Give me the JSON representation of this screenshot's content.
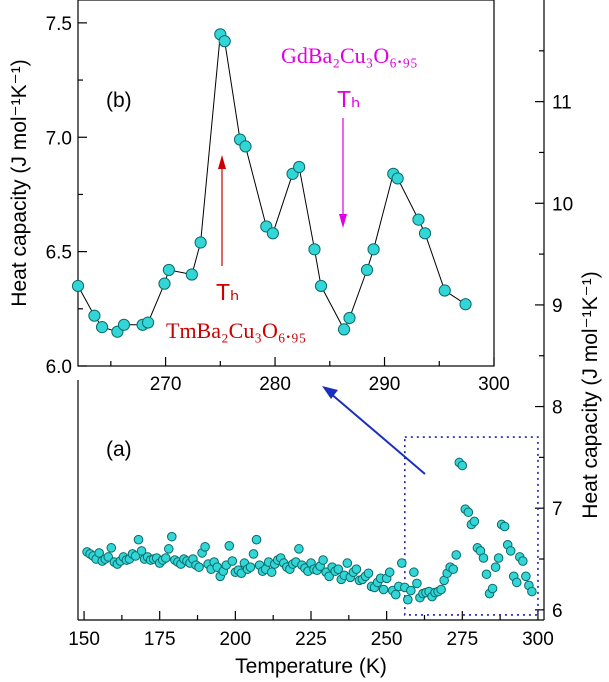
{
  "chart_data": [
    {
      "panel": "(a)",
      "type": "scatter",
      "xlabel": "Temperature (K)",
      "ylabel": "Heat capacity (J mol⁻¹K⁻¹)",
      "xlim": [
        148,
        302
      ],
      "ylim": [
        5.9,
        12.0
      ],
      "xticks": [
        "150",
        "175",
        "200",
        "225",
        "250",
        "275",
        "300"
      ],
      "yticks": [
        "6",
        "7",
        "8",
        "9",
        "10",
        "11"
      ],
      "box": {
        "x": [
          256,
          300
        ],
        "y": [
          5.95,
          7.7
        ]
      },
      "colors": {
        "marker": "#33d6d6",
        "marker_edge": "#0a6a6a",
        "box": "#2222aa",
        "arrow": "#1a2fbf"
      },
      "series": [
        {
          "x": [
            151,
            152,
            153,
            154,
            155,
            156,
            157,
            158,
            159,
            160,
            161,
            162,
            163,
            164,
            165,
            166,
            167,
            168,
            169,
            170,
            171,
            172,
            173,
            174,
            175,
            176,
            177,
            178,
            179,
            180,
            181,
            182,
            183,
            184,
            185,
            186,
            187,
            188,
            189,
            190,
            191,
            192,
            193,
            194,
            195,
            196,
            197,
            198,
            199,
            200,
            201,
            202,
            203,
            204,
            205,
            206,
            207,
            208,
            209,
            210,
            211,
            212,
            213,
            214,
            215,
            216,
            217,
            218,
            219,
            220,
            221,
            222,
            223,
            224,
            225,
            226,
            227,
            228,
            229,
            230,
            231,
            232,
            233,
            234,
            235,
            236,
            237,
            238,
            239,
            240,
            241,
            242,
            243,
            244,
            245,
            246,
            247,
            248,
            249,
            250,
            251,
            252,
            253,
            254,
            255,
            256,
            257,
            258,
            259,
            260,
            261,
            262,
            263,
            264,
            265,
            266,
            267,
            268,
            269,
            270,
            271,
            272,
            273,
            274,
            275,
            276,
            277,
            278,
            279,
            280,
            281,
            282,
            283,
            284,
            285,
            286,
            287,
            288,
            289,
            290,
            291,
            292,
            293,
            294,
            295,
            296,
            297,
            298
          ],
          "y": [
            6.57,
            6.55,
            6.53,
            6.5,
            6.56,
            6.48,
            6.5,
            6.52,
            6.61,
            6.47,
            6.45,
            6.48,
            6.52,
            6.49,
            6.5,
            6.55,
            6.53,
            6.69,
            6.58,
            6.5,
            6.52,
            6.49,
            6.5,
            6.51,
            6.46,
            6.49,
            6.51,
            6.6,
            6.72,
            6.49,
            6.47,
            6.45,
            6.5,
            6.48,
            6.46,
            6.5,
            6.44,
            6.42,
            6.56,
            6.62,
            6.45,
            6.4,
            6.47,
            6.42,
            6.33,
            6.38,
            6.44,
            6.63,
            6.48,
            6.37,
            6.39,
            6.36,
            6.46,
            6.4,
            6.42,
            6.55,
            6.69,
            6.44,
            6.38,
            6.4,
            6.47,
            6.37,
            6.45,
            6.49,
            6.51,
            6.46,
            6.42,
            6.4,
            6.45,
            6.47,
            6.6,
            6.44,
            6.41,
            6.38,
            6.46,
            6.4,
            6.39,
            6.43,
            6.49,
            6.37,
            6.33,
            6.42,
            6.38,
            6.4,
            6.3,
            6.34,
            6.46,
            6.32,
            6.37,
            6.4,
            6.29,
            6.3,
            6.33,
            6.36,
            6.23,
            6.22,
            6.27,
            6.31,
            6.2,
            6.31,
            6.37,
            6.19,
            6.15,
            6.23,
            6.46,
            6.22,
            6.1,
            6.19,
            6.37,
            6.26,
            6.12,
            6.16,
            6.17,
            6.18,
            6.13,
            6.17,
            6.18,
            6.2,
            6.29,
            6.36,
            6.42,
            6.4,
            6.54,
            7.45,
            7.42,
            6.99,
            6.96,
            6.84,
            6.87,
            6.61,
            6.58,
            6.51,
            6.35,
            6.16,
            6.21,
            6.42,
            6.51,
            6.84,
            6.82,
            6.64,
            6.58,
            6.33,
            6.27,
            6.52,
            6.48,
            6.33,
            6.24,
            6.18
          ]
        }
      ]
    },
    {
      "panel": "(b)",
      "type": "line",
      "ylabel": "Heat capacity (J mol⁻¹K⁻¹)",
      "xlim": [
        262,
        300
      ],
      "ylim": [
        6.0,
        7.6
      ],
      "xticks": [
        "270",
        "280",
        "290",
        "300"
      ],
      "yticks": [
        "6.0",
        "6.5",
        "7.0",
        "7.5"
      ],
      "series": [
        {
          "x": [
            262.0,
            263.5,
            264.2,
            265.6,
            266.2,
            267.9,
            268.4,
            269.9,
            270.3,
            272.4,
            273.2,
            275.0,
            275.4,
            276.8,
            277.3,
            279.2,
            279.8,
            281.6,
            282.2,
            283.6,
            284.2,
            286.3,
            286.8,
            288.4,
            289.0,
            290.8,
            291.2,
            293.1,
            293.7,
            295.5,
            297.4
          ],
          "y": [
            6.35,
            6.22,
            6.17,
            6.15,
            6.18,
            6.18,
            6.19,
            6.36,
            6.42,
            6.4,
            6.54,
            7.45,
            7.42,
            6.99,
            6.96,
            6.61,
            6.58,
            6.84,
            6.87,
            6.51,
            6.35,
            6.16,
            6.21,
            6.42,
            6.51,
            6.84,
            6.82,
            6.64,
            6.58,
            6.33,
            6.27
          ]
        }
      ],
      "annotations": [
        {
          "text": "GdBa₂Cu₃O₆.₉₅",
          "color": "#e000e0",
          "x": 286.5
        },
        {
          "text": "Tₕ",
          "color": "#e000e0",
          "x": 286.5
        },
        {
          "text": "TmBa₂Cu₃O₆.₉₅",
          "color": "#cc0000",
          "x": 275.2
        },
        {
          "text": "Tₕ",
          "color": "#cc0000",
          "x": 275.2
        }
      ]
    }
  ],
  "labels": {
    "panel_a": "(a)",
    "panel_b": "(b)",
    "x_title": "Temperature (K)",
    "y_title_left": "Heat capacity (J mol⁻¹K⁻¹)",
    "y_title_right": "Heat capacity (J mol⁻¹K⁻¹)",
    "gd_compound": "GdBa₂Cu₃O₆.₉₅",
    "tm_compound": "TmBa₂Cu₃O₆.₉₅",
    "th_label": "Tₕ"
  }
}
